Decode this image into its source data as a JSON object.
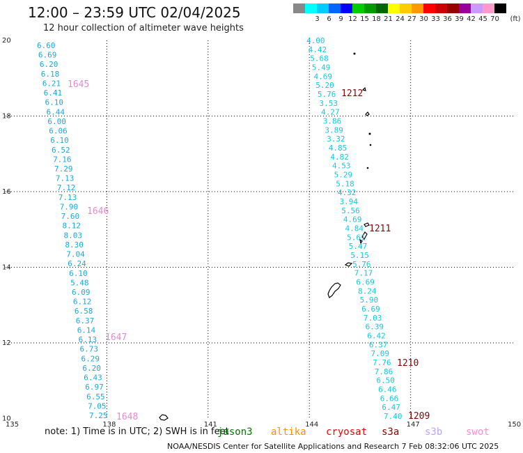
{
  "header": {
    "title": "12:00 – 23:59 UTC 02/04/2025",
    "subtitle": "12 hour collection of altimeter wave heights"
  },
  "legend": {
    "unit": "(ft)",
    "bins": [
      {
        "label": "",
        "color": "#888888"
      },
      {
        "label": "3",
        "color": "#00ffff"
      },
      {
        "label": "6",
        "color": "#00ccff"
      },
      {
        "label": "9",
        "color": "#0066ff"
      },
      {
        "label": "12",
        "color": "#0000ff"
      },
      {
        "label": "15",
        "color": "#00cc00"
      },
      {
        "label": "18",
        "color": "#009900"
      },
      {
        "label": "21",
        "color": "#006600"
      },
      {
        "label": "24",
        "color": "#ffff00"
      },
      {
        "label": "27",
        "color": "#ffcc00"
      },
      {
        "label": "30",
        "color": "#ff9900"
      },
      {
        "label": "33",
        "color": "#ff0000"
      },
      {
        "label": "36",
        "color": "#cc0000"
      },
      {
        "label": "39",
        "color": "#990000"
      },
      {
        "label": "42",
        "color": "#990099"
      },
      {
        "label": "45",
        "color": "#cc99ff"
      },
      {
        "label": "70",
        "color": "#ff99cc"
      },
      {
        "label": "",
        "color": "#000000"
      }
    ]
  },
  "map": {
    "lon_ticks": [
      "135",
      "138",
      "141",
      "144",
      "147",
      "150"
    ],
    "lat_ticks": [
      "20",
      "18",
      "16",
      "14",
      "12",
      "10"
    ]
  },
  "tracks": [
    {
      "satellite": "swot",
      "value_color": "#1aa7e0",
      "label_color": "#e58ad0",
      "values": [
        "6.60",
        "6.69",
        "6.20",
        "6.18",
        "6.21",
        "6.41",
        "6.10",
        "6.44",
        "6.00",
        "6.06",
        "6.10",
        "6.52",
        "7.16",
        "7.29",
        "7.13",
        "7.12",
        "7.13",
        "7.90",
        "7.60",
        "8.12",
        "8.03",
        "8.30",
        "7.04",
        "6.24",
        "6.10",
        "5.48",
        "6.09",
        "6.12",
        "6.58",
        "6.37",
        "6.14",
        "6.13",
        "6.73",
        "6.29",
        "6.20",
        "6.43",
        "6.97",
        "6.55",
        "7.05",
        "7.25"
      ],
      "time_labels": [
        "1645",
        "1646",
        "1647",
        "1648"
      ]
    },
    {
      "satellite": "s3a",
      "value_color": "#13c8e0",
      "label_color": "#8b0000",
      "values": [
        "4.00",
        "4.42",
        "5.68",
        "5.49",
        "4.69",
        "5.20",
        "5.76",
        "3.53",
        "4.27",
        "3.86",
        "3.89",
        "3.32",
        "4.85",
        "4.82",
        "4.53",
        "5.29",
        "5.18",
        "4.32",
        "3.94",
        "5.56",
        "4.69",
        "4.84",
        "5.61",
        "5.47",
        "5.15",
        "5.76",
        "7.17",
        "6.69",
        "8.24",
        "5.90",
        "6.69",
        "7.03",
        "6.39",
        "6.42",
        "6.37",
        "7.09",
        "7.76",
        "7.86",
        "6.50",
        "6.46",
        "6.66",
        "6.47",
        "7.40"
      ],
      "time_labels": [
        "1212",
        "1211",
        "1210",
        "1209"
      ]
    }
  ],
  "note": "note:  1) Time is in UTC;  2) SWH is in feet",
  "satellites": [
    {
      "name": "jason3",
      "color": "#007700"
    },
    {
      "name": "altika",
      "color": "#ff8c00"
    },
    {
      "name": "cryosat",
      "color": "#ee0000"
    },
    {
      "name": "s3a",
      "color": "#8b0000"
    },
    {
      "name": "s3b",
      "color": "#b9a3ff"
    },
    {
      "name": "swot",
      "color": "#ff8ad8"
    }
  ],
  "footer": "NOAA/NESDIS Center for Satellite Applications and Research     7 Feb 08:32:06 UTC 2025"
}
